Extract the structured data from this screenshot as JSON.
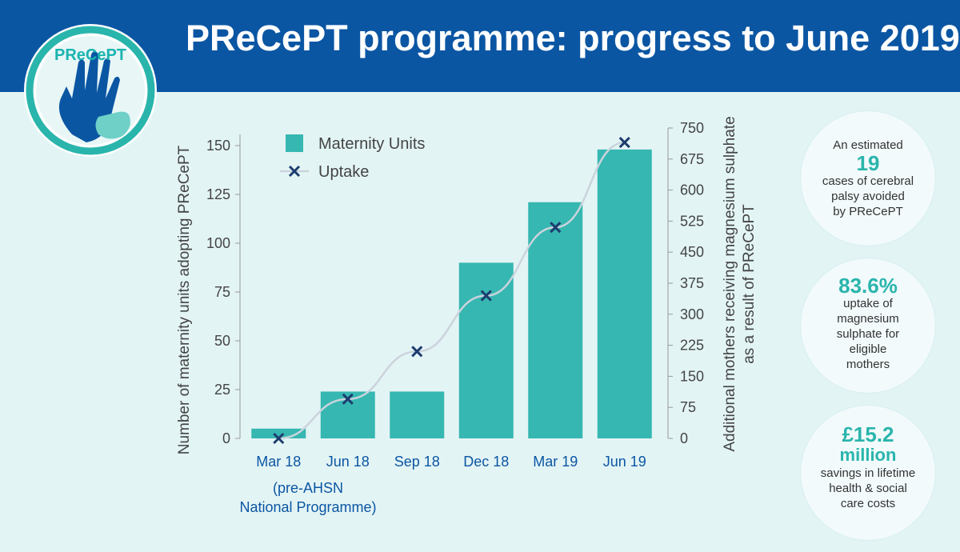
{
  "header": {
    "title": "PReCePT programme: progress to June 2019"
  },
  "logo": {
    "text": "PReCePT"
  },
  "colors": {
    "header_bg": "#0b56a3",
    "bar": "#36b7b1",
    "marker": "#1d3c6e",
    "line": "#cbd3dc",
    "accent": "#2ab5ac"
  },
  "chart_data": {
    "type": "bar",
    "categories": [
      "Mar 18",
      "Jun 18",
      "Sep 18",
      "Dec 18",
      "Mar 19",
      "Jun 19"
    ],
    "series": [
      {
        "name": "Maternity Units",
        "type": "bar",
        "axis": "left",
        "values": [
          5,
          24,
          24,
          90,
          121,
          148
        ]
      },
      {
        "name": "Uptake",
        "type": "line",
        "axis": "right",
        "values": [
          0,
          95,
          210,
          345,
          510,
          715
        ]
      }
    ],
    "ylabel": "Number of maternity units adopting PReCePT",
    "y2label": "Additional mothers receiving magnesium sulphate as a result of PReCePT",
    "ylim": [
      0,
      150
    ],
    "y2lim": [
      0,
      750
    ],
    "yticks": [
      "0",
      "25",
      "50",
      "75",
      "100",
      "125",
      "150"
    ],
    "y2ticks": [
      "0",
      "75",
      "150",
      "225",
      "300",
      "375",
      "450",
      "525",
      "600",
      "675",
      "750"
    ],
    "legend": [
      "Maternity Units",
      "Uptake"
    ],
    "legend_position": "top-left",
    "footnote_line1": "(pre-AHSN",
    "footnote_line2": "National Programme)"
  },
  "stats": [
    {
      "line1": "An estimated",
      "big": "19",
      "rest": [
        "cases of cerebral",
        "palsy avoided",
        "by PReCePT"
      ]
    },
    {
      "big": "83.6%",
      "rest": [
        "uptake of",
        "magnesium",
        "sulphate for",
        "eligible",
        "mothers"
      ]
    },
    {
      "big1": "£15.2",
      "big2": "million",
      "rest": [
        "savings in lifetime",
        "health & social",
        "care costs"
      ]
    }
  ]
}
